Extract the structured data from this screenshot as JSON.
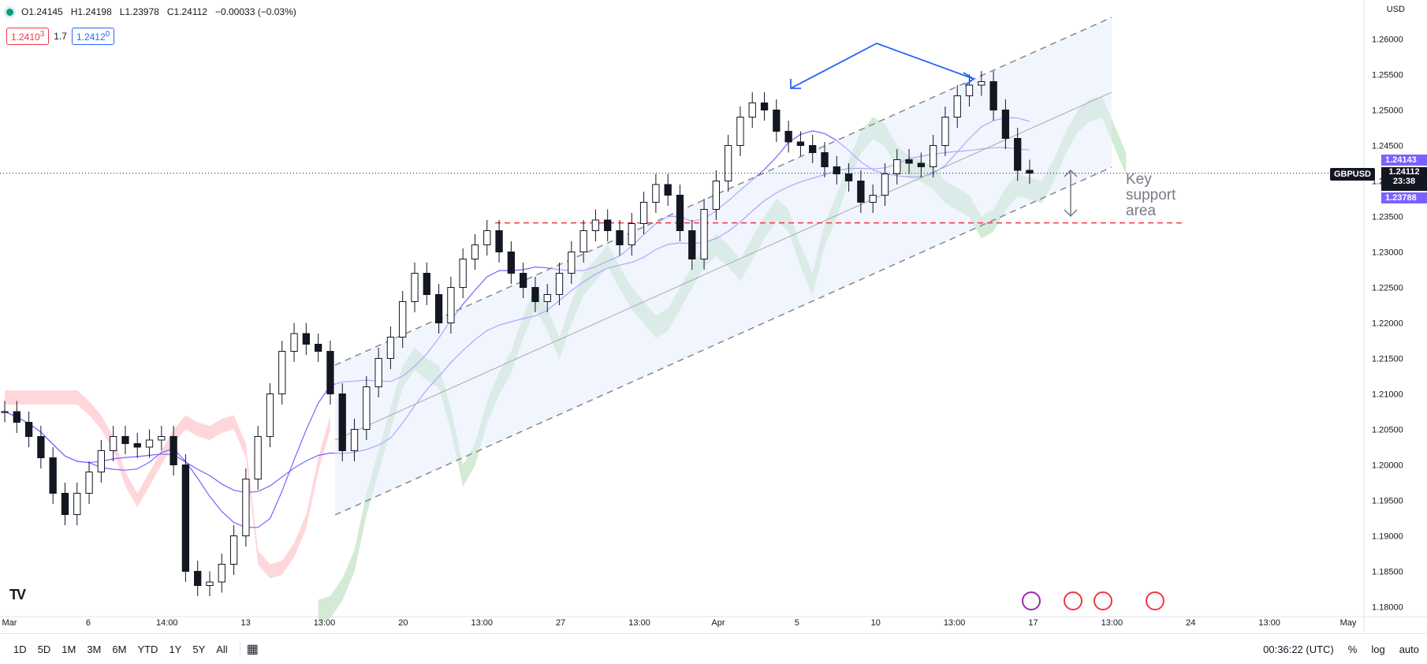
{
  "header": {
    "open": "O1.24145",
    "high": "H1.24198",
    "low": "L1.23978",
    "close": "C1.24112",
    "change": "−0.00033 (−0.03%)",
    "sell_quote": "1.2410",
    "sell_quote_sup": "3",
    "spread": "1.7",
    "buy_quote": "1.2412",
    "buy_quote_sup": "0"
  },
  "currency_label": "USD",
  "symbol": "GBPUSD",
  "price_labels": {
    "upper": "1.24143",
    "last": "1.24112",
    "countdown": "23:38",
    "lower": "1.23788"
  },
  "annotation": "Key support area",
  "bottom": {
    "ranges": [
      "1D",
      "5D",
      "1M",
      "3M",
      "6M",
      "YTD",
      "1Y",
      "5Y",
      "All"
    ],
    "time": "00:36:22 (UTC)",
    "percent": "%",
    "log": "log",
    "auto": "auto"
  },
  "colors": {
    "up": "#131722",
    "down": "#131722",
    "cloud_bull": "#c8e6c9",
    "cloud_bear": "#ffcdd2",
    "channel": "#e3ebfb",
    "support": "#f23645",
    "ma": "#7b61ff",
    "arrow": "#2962ff"
  },
  "chart_data": {
    "type": "line",
    "symbol": "GBPUSD",
    "ylim": [
      1.1775,
      1.2655
    ],
    "y_ticks": [
      "1.26000",
      "1.25500",
      "1.25000",
      "1.24500",
      "1.24000",
      "1.23500",
      "1.23000",
      "1.22500",
      "1.22000",
      "1.21500",
      "1.21000",
      "1.20500",
      "1.20000",
      "1.19500",
      "1.19000",
      "1.18500",
      "1.18000"
    ],
    "x_ticks": [
      "Mar",
      "6",
      "14:00",
      "13",
      "13:00",
      "20",
      "13:00",
      "27",
      "13:00",
      "Apr",
      "5",
      "10",
      "13:00",
      "17",
      "13:00",
      "24",
      "13:00",
      "May"
    ],
    "support_level": 1.2341,
    "series": [
      {
        "name": "GBPUSD",
        "values": [
          1.2075,
          1.206,
          1.204,
          1.201,
          1.196,
          1.193,
          1.196,
          1.199,
          1.202,
          1.204,
          1.203,
          1.2025,
          1.2035,
          1.204,
          1.2,
          1.185,
          1.183,
          1.1835,
          1.186,
          1.19,
          1.198,
          1.204,
          1.21,
          1.216,
          1.2185,
          1.217,
          1.216,
          1.21,
          1.202,
          1.205,
          1.211,
          1.215,
          1.218,
          1.223,
          1.227,
          1.224,
          1.22,
          1.225,
          1.229,
          1.231,
          1.233,
          1.23,
          1.227,
          1.225,
          1.223,
          1.224,
          1.227,
          1.23,
          1.233,
          1.2345,
          1.233,
          1.231,
          1.234,
          1.237,
          1.2395,
          1.238,
          1.233,
          1.229,
          1.236,
          1.24,
          1.245,
          1.249,
          1.251,
          1.25,
          1.247,
          1.2455,
          1.245,
          1.244,
          1.242,
          1.241,
          1.24,
          1.237,
          1.238,
          1.241,
          1.243,
          1.2425,
          1.242,
          1.245,
          1.249,
          1.252,
          1.2535,
          1.254,
          1.25,
          1.246,
          1.2415,
          1.2411
        ]
      }
    ]
  }
}
